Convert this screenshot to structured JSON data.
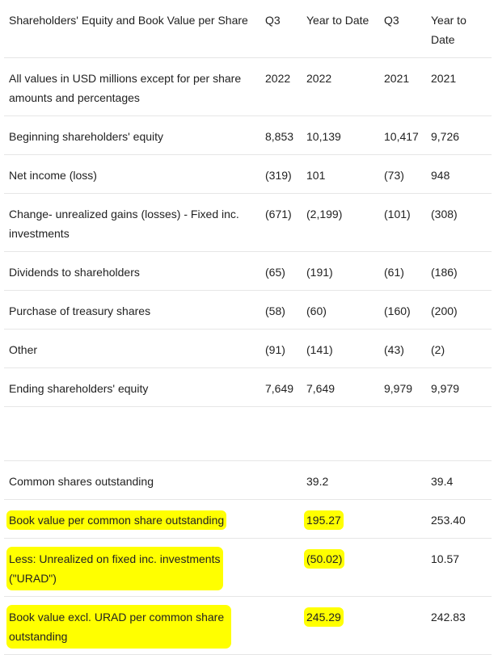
{
  "header": {
    "title": "Shareholders' Equity and Book Value per Share",
    "col1": "Q3",
    "col2": "Year to Date",
    "col3": "Q3",
    "col4": "Year to Date"
  },
  "subheader": {
    "label": "All values in USD millions except for per share amounts and percentages",
    "col1": "2022",
    "col2": "2022",
    "col3": "2021",
    "col4": "2021"
  },
  "rows": [
    {
      "label": "Beginning shareholders' equity",
      "q3_2022": "8,853",
      "ytd_2022": "10,139",
      "q3_2021": "10,417",
      "ytd_2021": "9,726"
    },
    {
      "label": "Net income (loss)",
      "q3_2022": "(319)",
      "ytd_2022": "101",
      "q3_2021": "(73)",
      "ytd_2021": "948"
    },
    {
      "label": "Change- unrealized gains (losses) - Fixed inc. investments",
      "q3_2022": "(671)",
      "ytd_2022": "(2,199)",
      "q3_2021": "(101)",
      "ytd_2021": "(308)"
    },
    {
      "label": "Dividends to shareholders",
      "q3_2022": "(65)",
      "ytd_2022": "(191)",
      "q3_2021": "(61)",
      "ytd_2021": "(186)"
    },
    {
      "label": "Purchase of treasury shares",
      "q3_2022": "(58)",
      "ytd_2022": "(60)",
      "q3_2021": "(160)",
      "ytd_2021": "(200)"
    },
    {
      "label": "Other",
      "q3_2022": "(91)",
      "ytd_2022": "(141)",
      "q3_2021": "(43)",
      "ytd_2021": "(2)"
    },
    {
      "label": "Ending shareholders' equity",
      "q3_2022": "7,649",
      "ytd_2022": "7,649",
      "q3_2021": "9,979",
      "ytd_2021": "9,979"
    }
  ],
  "lower_rows": [
    {
      "label": "Common shares outstanding",
      "ytd_2022": "39.2",
      "ytd_2021": "39.4"
    },
    {
      "label": "Book value per common share outstanding",
      "ytd_2022": "195.27",
      "ytd_2021": "253.40"
    },
    {
      "label": "Less: Unrealized on fixed inc. investments (\"URAD\")",
      "ytd_2022": "(50.02)",
      "ytd_2021": "10.57"
    },
    {
      "label": "Book value excl. URAD per common share outstanding",
      "ytd_2022": "245.29",
      "ytd_2021": "242.83"
    }
  ],
  "highlight_color": "#ffff00"
}
